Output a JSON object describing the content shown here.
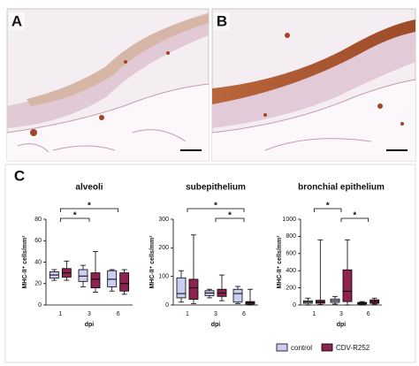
{
  "panels": {
    "a": "A",
    "b": "B",
    "c": "C"
  },
  "legend": [
    {
      "name": "control",
      "color": "#cccdf2"
    },
    {
      "name": "CDV-R252",
      "color": "#8e2350"
    }
  ],
  "chart_data": [
    {
      "type": "box",
      "title": "alveoli",
      "x_label": "dpi",
      "y_label": "MHC-II⁺ cells/mm²",
      "categories": [
        "1",
        "3",
        "6"
      ],
      "ylim": [
        0,
        80
      ],
      "yticks": [
        0,
        20,
        40,
        60,
        80
      ],
      "series": [
        {
          "values": [
            {
              "min": 23,
              "q1": 25,
              "median": 28,
              "q3": 31,
              "max": 33
            },
            {
              "min": 17,
              "q1": 22,
              "median": 27,
              "q3": 33,
              "max": 37
            },
            {
              "min": 13,
              "q1": 17,
              "median": 24,
              "q3": 32,
              "max": 33
            }
          ]
        },
        {
          "values": [
            {
              "min": 23,
              "q1": 26,
              "median": 30,
              "q3": 34,
              "max": 41
            },
            {
              "min": 12,
              "q1": 16,
              "median": 24,
              "q3": 30,
              "max": 50
            },
            {
              "min": 10,
              "q1": 13,
              "median": 20,
              "q3": 30,
              "max": 33
            }
          ]
        }
      ],
      "significance": [
        {
          "label": "*",
          "between": [
            "1",
            "6"
          ]
        },
        {
          "label": "*",
          "between": [
            "1",
            "3"
          ]
        }
      ]
    },
    {
      "type": "box",
      "title": "subepithelium",
      "x_label": "dpi",
      "y_label": "MHC-II⁺ cells/mm²",
      "categories": [
        "1",
        "3",
        "6"
      ],
      "ylim": [
        0,
        300
      ],
      "yticks": [
        0,
        100,
        200,
        300
      ],
      "series": [
        {
          "values": [
            {
              "min": 10,
              "q1": 25,
              "median": 40,
              "q3": 95,
              "max": 120
            },
            {
              "min": 25,
              "q1": 33,
              "median": 42,
              "q3": 50,
              "max": 55
            },
            {
              "min": 5,
              "q1": 10,
              "median": 40,
              "q3": 55,
              "max": 65
            }
          ]
        },
        {
          "values": [
            {
              "min": 5,
              "q1": 20,
              "median": 60,
              "q3": 90,
              "max": 245
            },
            {
              "min": 15,
              "q1": 30,
              "median": 42,
              "q3": 55,
              "max": 105
            },
            {
              "min": 0,
              "q1": 3,
              "median": 8,
              "q3": 12,
              "max": 55
            }
          ]
        }
      ],
      "significance": [
        {
          "label": "*",
          "between": [
            "1",
            "6"
          ]
        },
        {
          "label": "*",
          "between": [
            "3",
            "6"
          ]
        }
      ]
    },
    {
      "type": "box",
      "title": "bronchial epithelium",
      "x_label": "dpi",
      "y_label": "MHC-II⁺ cells/mm²",
      "categories": [
        "1",
        "3",
        "6"
      ],
      "ylim": [
        0,
        1000
      ],
      "yticks": [
        0,
        200,
        400,
        600,
        800,
        1000
      ],
      "series": [
        {
          "values": [
            {
              "min": 0,
              "q1": 20,
              "median": 35,
              "q3": 50,
              "max": 80
            },
            {
              "min": 10,
              "q1": 30,
              "median": 50,
              "q3": 70,
              "max": 100
            },
            {
              "min": 0,
              "q1": 10,
              "median": 20,
              "q3": 30,
              "max": 40
            }
          ]
        },
        {
          "values": [
            {
              "min": 5,
              "q1": 20,
              "median": 35,
              "q3": 55,
              "max": 760
            },
            {
              "min": 0,
              "q1": 40,
              "median": 160,
              "q3": 410,
              "max": 760
            },
            {
              "min": 10,
              "q1": 20,
              "median": 40,
              "q3": 60,
              "max": 80
            }
          ]
        }
      ],
      "significance": [
        {
          "label": "*",
          "between": [
            "1",
            "3"
          ]
        },
        {
          "label": "*",
          "between": [
            "3",
            "6"
          ]
        }
      ]
    }
  ]
}
